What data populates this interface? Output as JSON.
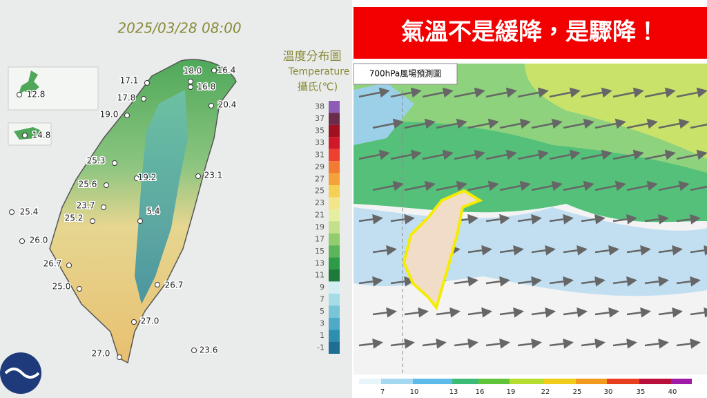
{
  "left_map": {
    "timestamp": "2025/03/28 08:00",
    "legend_title": "溫度分布圖",
    "legend_subtitle": "Temperature",
    "legend_unit": "攝氏(℃)",
    "legend_ticks": [
      38,
      37,
      35,
      33,
      31,
      29,
      27,
      25,
      23,
      21,
      19,
      17,
      15,
      13,
      11,
      9,
      7,
      5,
      3,
      1,
      -1
    ],
    "stations": [
      "12.8",
      "14.8",
      "17.1",
      "18.0",
      "16.4",
      "16.8",
      "17.8",
      "20.4",
      "19.0",
      "25.3",
      "19.2",
      "23.1",
      "25.6",
      "23.7",
      "5.4",
      "25.2",
      "25.4",
      "26.0",
      "26.7",
      "25.0",
      "26.7",
      "27.0",
      "27.0",
      "23.6"
    ]
  },
  "right_map": {
    "headline": "氣溫不是緩降，是驟降！",
    "panel_label": "700hPa風場預測圖",
    "colorbar_ticks": [
      7,
      10,
      13,
      16,
      19,
      22,
      25,
      30,
      35,
      40
    ]
  }
}
